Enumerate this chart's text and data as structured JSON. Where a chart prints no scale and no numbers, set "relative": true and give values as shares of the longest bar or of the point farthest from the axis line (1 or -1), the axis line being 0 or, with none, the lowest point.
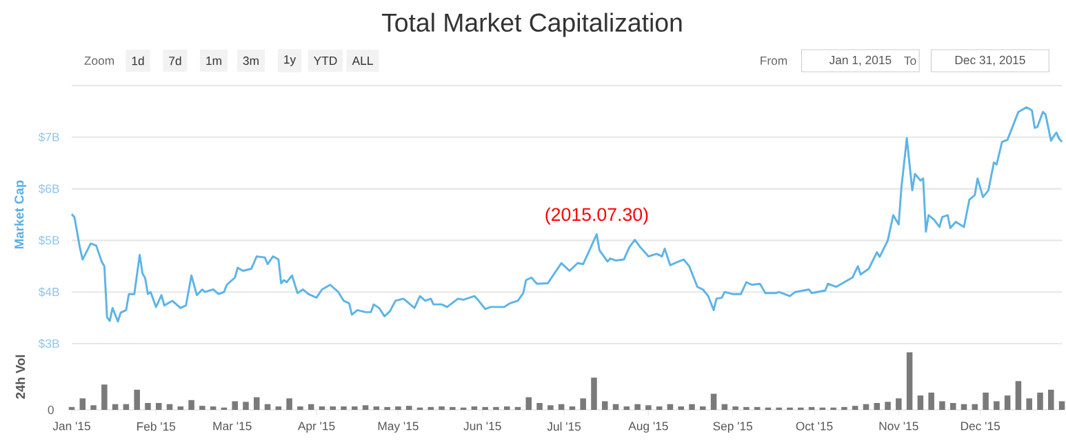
{
  "chart_data": [
    {
      "type": "line",
      "title": "Total Market Capitalization",
      "ylabel": "Market Cap",
      "xlim": [
        "2015-01-01",
        "2015-12-31"
      ],
      "ylim": [
        3,
        8
      ],
      "yticks": [
        {
          "value": 3,
          "label": "$3B"
        },
        {
          "value": 4,
          "label": "$4B"
        },
        {
          "value": 5,
          "label": "$5B"
        },
        {
          "value": 6,
          "label": "$6B"
        },
        {
          "value": 7,
          "label": "$7B"
        },
        {
          "value": 8,
          "label": null
        }
      ],
      "grid": "y",
      "tick_labels": "y",
      "annotations": [
        "Zoom",
        "1d",
        "7d",
        "1m",
        "3m",
        "1y",
        "YTD",
        "ALL",
        "From",
        "Jan 1, 2015",
        "To",
        "Dec 31, 2015",
        {
          "text": "(2015.07.30)",
          "x": "2015-07-13",
          "y": 5.12
        }
      ],
      "series": [
        {
          "color": "#5cb4e8",
          "x": [
            "2015-01-01",
            "2015-01-02",
            "2015-01-04",
            "2015-01-05",
            "2015-01-08",
            "2015-01-10",
            "2015-01-12",
            "2015-01-13",
            "2015-01-14",
            "2015-01-15",
            "2015-01-16",
            "2015-01-18",
            "2015-01-19",
            "2015-01-21",
            "2015-01-22",
            "2015-01-24",
            "2015-01-26",
            "2015-01-27",
            "2015-01-28",
            "2015-01-29",
            "2015-01-30",
            "2015-02-01",
            "2015-02-03",
            "2015-02-04",
            "2015-02-07",
            "2015-02-10",
            "2015-02-12",
            "2015-02-14",
            "2015-02-16",
            "2015-02-18",
            "2015-02-19",
            "2015-02-22",
            "2015-02-24",
            "2015-02-26",
            "2015-02-27",
            "2015-03-02",
            "2015-03-03",
            "2015-03-05",
            "2015-03-08",
            "2015-03-10",
            "2015-03-13",
            "2015-03-14",
            "2015-03-16",
            "2015-03-18",
            "2015-03-19",
            "2015-03-20",
            "2015-03-21",
            "2015-03-23",
            "2015-03-25",
            "2015-03-27",
            "2015-03-29",
            "2015-04-01",
            "2015-04-03",
            "2015-04-06",
            "2015-04-09",
            "2015-04-11",
            "2015-04-13",
            "2015-04-14",
            "2015-04-16",
            "2015-04-19",
            "2015-04-21",
            "2015-04-22",
            "2015-04-24",
            "2015-04-26",
            "2015-04-28",
            "2015-04-30",
            "2015-05-03",
            "2015-05-05",
            "2015-05-07",
            "2015-05-09",
            "2015-05-11",
            "2015-05-13",
            "2015-05-14",
            "2015-05-17",
            "2015-05-19",
            "2015-05-23",
            "2015-05-25",
            "2015-05-29",
            "2015-05-30",
            "2015-06-02",
            "2015-06-04",
            "2015-06-09",
            "2015-06-11",
            "2015-06-14",
            "2015-06-16",
            "2015-06-17",
            "2015-06-19",
            "2015-06-21",
            "2015-06-25",
            "2015-06-30",
            "2015-07-03",
            "2015-07-06",
            "2015-07-08",
            "2015-07-10",
            "2015-07-13",
            "2015-07-14",
            "2015-07-17",
            "2015-07-18",
            "2015-07-20",
            "2015-07-23",
            "2015-07-25",
            "2015-07-27",
            "2015-07-29",
            "2015-08-01",
            "2015-08-04",
            "2015-08-06",
            "2015-08-07",
            "2015-08-09",
            "2015-08-12",
            "2015-08-14",
            "2015-08-16",
            "2015-08-19",
            "2015-08-21",
            "2015-08-23",
            "2015-08-25",
            "2015-08-26",
            "2015-08-28",
            "2015-08-29",
            "2015-09-01",
            "2015-09-04",
            "2015-09-06",
            "2015-09-08",
            "2015-09-11",
            "2015-09-13",
            "2015-09-17",
            "2015-09-18",
            "2015-09-22",
            "2015-09-24",
            "2015-09-29",
            "2015-09-30",
            "2015-10-05",
            "2015-10-06",
            "2015-10-09",
            "2015-10-12",
            "2015-10-15",
            "2015-10-17",
            "2015-10-18",
            "2015-10-21",
            "2015-10-24",
            "2015-10-25",
            "2015-10-28",
            "2015-10-30",
            "2015-11-01",
            "2015-11-02",
            "2015-11-04",
            "2015-11-06",
            "2015-11-07",
            "2015-11-09",
            "2015-11-10",
            "2015-11-11",
            "2015-11-12",
            "2015-11-14",
            "2015-11-16",
            "2015-11-17",
            "2015-11-19",
            "2015-11-20",
            "2015-11-22",
            "2015-11-25",
            "2015-11-27",
            "2015-11-29",
            "2015-11-30",
            "2015-12-02",
            "2015-12-04",
            "2015-12-06",
            "2015-12-07",
            "2015-12-09",
            "2015-12-11",
            "2015-12-13",
            "2015-12-15",
            "2015-12-18",
            "2015-12-20",
            "2015-12-21",
            "2015-12-22",
            "2015-12-24",
            "2015-12-25",
            "2015-12-27",
            "2015-12-28",
            "2015-12-29",
            "2015-12-30",
            "2015-12-31"
          ],
          "values": [
            5.51,
            5.45,
            4.86,
            4.63,
            4.94,
            4.9,
            4.59,
            4.5,
            3.51,
            3.44,
            3.69,
            3.43,
            3.6,
            3.65,
            3.96,
            3.96,
            4.72,
            4.36,
            4.27,
            3.96,
            4.0,
            3.71,
            3.94,
            3.74,
            3.83,
            3.69,
            3.74,
            4.32,
            3.94,
            4.05,
            4.0,
            4.05,
            3.96,
            4.0,
            4.14,
            4.28,
            4.47,
            4.41,
            4.45,
            4.69,
            4.67,
            4.54,
            4.69,
            4.63,
            4.17,
            4.23,
            4.19,
            4.32,
            3.98,
            4.05,
            3.96,
            3.89,
            4.05,
            4.14,
            4.0,
            3.83,
            3.78,
            3.56,
            3.65,
            3.61,
            3.61,
            3.76,
            3.69,
            3.53,
            3.63,
            3.83,
            3.87,
            3.78,
            3.69,
            3.92,
            3.83,
            3.87,
            3.76,
            3.76,
            3.71,
            3.87,
            3.85,
            3.92,
            3.87,
            3.67,
            3.71,
            3.71,
            3.78,
            3.83,
            3.98,
            4.23,
            4.28,
            4.16,
            4.17,
            4.56,
            4.41,
            4.56,
            4.54,
            4.77,
            5.12,
            4.81,
            4.59,
            4.65,
            4.61,
            4.63,
            4.87,
            5.01,
            4.87,
            4.69,
            4.74,
            4.69,
            4.84,
            4.52,
            4.59,
            4.63,
            4.5,
            4.1,
            4.05,
            3.92,
            3.65,
            3.87,
            3.89,
            4.0,
            3.96,
            3.96,
            4.19,
            4.14,
            4.16,
            3.98,
            3.98,
            4.0,
            3.92,
            4.0,
            4.05,
            3.98,
            4.03,
            4.16,
            4.1,
            4.19,
            4.28,
            4.5,
            4.34,
            4.45,
            4.77,
            4.68,
            5.0,
            5.49,
            5.31,
            6.02,
            6.98,
            5.97,
            6.29,
            6.16,
            6.2,
            5.17,
            5.49,
            5.4,
            5.26,
            5.45,
            5.49,
            5.24,
            5.36,
            5.26,
            5.79,
            5.88,
            6.2,
            5.84,
            5.97,
            6.51,
            6.47,
            6.91,
            6.95,
            7.22,
            7.49,
            7.58,
            7.52,
            7.18,
            7.2,
            7.49,
            7.44,
            6.93,
            7.02,
            7.09,
            6.97,
            6.91
          ]
        }
      ]
    },
    {
      "type": "bar",
      "ylabel": "24h Vol",
      "relative": true,
      "tick_labels": "x",
      "xlim": [
        "2015-01-01",
        "2015-12-31"
      ],
      "xticks": [
        {
          "value": "2015-01-01",
          "label": "Jan '15"
        },
        {
          "value": "2015-02-01",
          "label": "Feb '15"
        },
        {
          "value": "2015-03-01",
          "label": "Mar '15"
        },
        {
          "value": "2015-04-01",
          "label": "Apr '15"
        },
        {
          "value": "2015-05-01",
          "label": "May '15"
        },
        {
          "value": "2015-06-01",
          "label": "Jun '15"
        },
        {
          "value": "2015-07-01",
          "label": "Jul '15"
        },
        {
          "value": "2015-08-01",
          "label": "Aug '15"
        },
        {
          "value": "2015-09-01",
          "label": "Sep '15"
        },
        {
          "value": "2015-10-01",
          "label": "Oct '15"
        },
        {
          "value": "2015-11-01",
          "label": "Nov '15"
        },
        {
          "value": "2015-12-01",
          "label": "Dec '15"
        }
      ],
      "annotations": [
        "0"
      ],
      "series": [
        {
          "color": "#7a7a7a",
          "x": [
            "2015-01-01",
            "2015-01-05",
            "2015-01-09",
            "2015-01-13",
            "2015-01-17",
            "2015-01-21",
            "2015-01-25",
            "2015-01-29",
            "2015-02-02",
            "2015-02-06",
            "2015-02-10",
            "2015-02-14",
            "2015-02-18",
            "2015-02-22",
            "2015-02-26",
            "2015-03-02",
            "2015-03-06",
            "2015-03-10",
            "2015-03-14",
            "2015-03-18",
            "2015-03-22",
            "2015-03-26",
            "2015-03-30",
            "2015-04-03",
            "2015-04-07",
            "2015-04-11",
            "2015-04-15",
            "2015-04-19",
            "2015-04-23",
            "2015-04-27",
            "2015-05-01",
            "2015-05-05",
            "2015-05-09",
            "2015-05-13",
            "2015-05-17",
            "2015-05-21",
            "2015-05-25",
            "2015-05-29",
            "2015-06-02",
            "2015-06-06",
            "2015-06-10",
            "2015-06-14",
            "2015-06-18",
            "2015-06-22",
            "2015-06-26",
            "2015-06-30",
            "2015-07-04",
            "2015-07-08",
            "2015-07-12",
            "2015-07-16",
            "2015-07-20",
            "2015-07-24",
            "2015-07-28",
            "2015-08-01",
            "2015-08-05",
            "2015-08-09",
            "2015-08-13",
            "2015-08-17",
            "2015-08-21",
            "2015-08-25",
            "2015-08-29",
            "2015-09-02",
            "2015-09-06",
            "2015-09-10",
            "2015-09-14",
            "2015-09-18",
            "2015-09-22",
            "2015-09-26",
            "2015-09-30",
            "2015-10-04",
            "2015-10-08",
            "2015-10-12",
            "2015-10-16",
            "2015-10-20",
            "2015-10-24",
            "2015-10-28",
            "2015-11-01",
            "2015-11-05",
            "2015-11-09",
            "2015-11-13",
            "2015-11-17",
            "2015-11-21",
            "2015-11-25",
            "2015-11-29",
            "2015-12-03",
            "2015-12-07",
            "2015-12-11",
            "2015-12-15",
            "2015-12-19",
            "2015-12-23",
            "2015-12-27",
            "2015-12-31"
          ],
          "values": [
            0.05,
            0.2,
            0.08,
            0.44,
            0.1,
            0.1,
            0.35,
            0.12,
            0.12,
            0.1,
            0.06,
            0.17,
            0.07,
            0.06,
            0.04,
            0.15,
            0.14,
            0.22,
            0.1,
            0.06,
            0.2,
            0.06,
            0.1,
            0.06,
            0.06,
            0.06,
            0.06,
            0.08,
            0.06,
            0.05,
            0.06,
            0.07,
            0.04,
            0.05,
            0.06,
            0.05,
            0.04,
            0.06,
            0.05,
            0.05,
            0.06,
            0.05,
            0.22,
            0.12,
            0.08,
            0.1,
            0.06,
            0.2,
            0.56,
            0.15,
            0.1,
            0.06,
            0.1,
            0.08,
            0.06,
            0.1,
            0.06,
            0.1,
            0.06,
            0.28,
            0.1,
            0.06,
            0.05,
            0.05,
            0.04,
            0.04,
            0.04,
            0.04,
            0.05,
            0.04,
            0.04,
            0.05,
            0.07,
            0.1,
            0.12,
            0.14,
            0.2,
            1.0,
            0.25,
            0.3,
            0.15,
            0.12,
            0.1,
            0.1,
            0.3,
            0.15,
            0.25,
            0.5,
            0.2,
            0.3,
            0.35,
            0.15
          ]
        }
      ]
    }
  ]
}
